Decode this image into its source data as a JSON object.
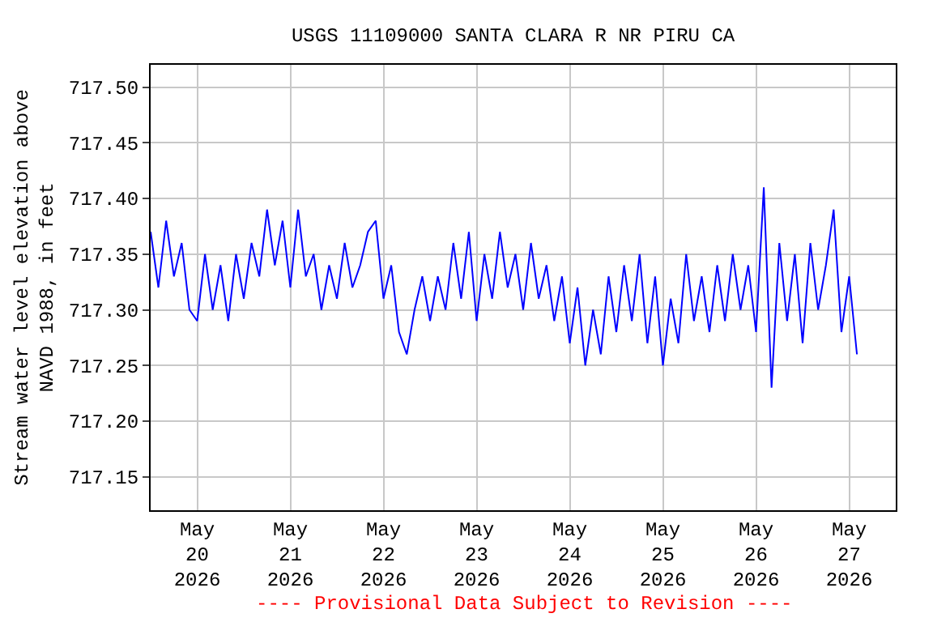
{
  "chart_data": {
    "type": "line",
    "title": "USGS 11109000 SANTA CLARA R NR PIRU CA",
    "ylabel": "Stream water level elevation above NAVD 1988, in feet",
    "annotations": [
      "---- Provisional Data Subject to Revision ----"
    ],
    "x": [
      "2026-05-19T12:00",
      "2026-05-19T14:00",
      "2026-05-19T16:00",
      "2026-05-19T18:00",
      "2026-05-19T20:00",
      "2026-05-19T22:00",
      "2026-05-20T00:00",
      "2026-05-20T02:00",
      "2026-05-20T04:00",
      "2026-05-20T06:00",
      "2026-05-20T08:00",
      "2026-05-20T10:00",
      "2026-05-20T12:00",
      "2026-05-20T14:00",
      "2026-05-20T16:00",
      "2026-05-20T18:00",
      "2026-05-20T20:00",
      "2026-05-20T22:00",
      "2026-05-21T00:00",
      "2026-05-21T02:00",
      "2026-05-21T04:00",
      "2026-05-21T06:00",
      "2026-05-21T08:00",
      "2026-05-21T10:00",
      "2026-05-21T12:00",
      "2026-05-21T14:00",
      "2026-05-21T16:00",
      "2026-05-21T18:00",
      "2026-05-21T20:00",
      "2026-05-21T22:00",
      "2026-05-22T00:00",
      "2026-05-22T02:00",
      "2026-05-22T04:00",
      "2026-05-22T06:00",
      "2026-05-22T08:00",
      "2026-05-22T10:00",
      "2026-05-22T12:00",
      "2026-05-22T14:00",
      "2026-05-22T16:00",
      "2026-05-22T18:00",
      "2026-05-22T20:00",
      "2026-05-22T22:00",
      "2026-05-23T00:00",
      "2026-05-23T02:00",
      "2026-05-23T04:00",
      "2026-05-23T06:00",
      "2026-05-23T08:00",
      "2026-05-23T10:00",
      "2026-05-23T12:00",
      "2026-05-23T14:00",
      "2026-05-23T16:00",
      "2026-05-23T18:00",
      "2026-05-23T20:00",
      "2026-05-23T22:00",
      "2026-05-24T00:00",
      "2026-05-24T02:00",
      "2026-05-24T04:00",
      "2026-05-24T06:00",
      "2026-05-24T08:00",
      "2026-05-24T10:00",
      "2026-05-24T12:00",
      "2026-05-24T14:00",
      "2026-05-24T16:00",
      "2026-05-24T18:00",
      "2026-05-24T20:00",
      "2026-05-24T22:00",
      "2026-05-25T00:00",
      "2026-05-25T02:00",
      "2026-05-25T04:00",
      "2026-05-25T06:00",
      "2026-05-25T08:00",
      "2026-05-25T10:00",
      "2026-05-25T12:00",
      "2026-05-25T14:00",
      "2026-05-25T16:00",
      "2026-05-25T18:00",
      "2026-05-25T20:00",
      "2026-05-25T22:00",
      "2026-05-26T00:00",
      "2026-05-26T02:00",
      "2026-05-26T04:00",
      "2026-05-26T06:00",
      "2026-05-26T08:00",
      "2026-05-26T10:00",
      "2026-05-26T12:00",
      "2026-05-26T14:00",
      "2026-05-26T16:00",
      "2026-05-26T18:00",
      "2026-05-26T20:00",
      "2026-05-26T22:00",
      "2026-05-27T00:00",
      "2026-05-27T02:00"
    ],
    "series": [
      {
        "color": "#0000ff",
        "values": [
          717.37,
          717.32,
          717.38,
          717.33,
          717.36,
          717.3,
          717.29,
          717.35,
          717.3,
          717.34,
          717.29,
          717.35,
          717.31,
          717.36,
          717.33,
          717.39,
          717.34,
          717.38,
          717.32,
          717.39,
          717.33,
          717.35,
          717.3,
          717.34,
          717.31,
          717.36,
          717.32,
          717.34,
          717.37,
          717.38,
          717.31,
          717.34,
          717.28,
          717.26,
          717.3,
          717.33,
          717.29,
          717.33,
          717.3,
          717.36,
          717.31,
          717.37,
          717.29,
          717.35,
          717.31,
          717.37,
          717.32,
          717.35,
          717.3,
          717.36,
          717.31,
          717.34,
          717.29,
          717.33,
          717.27,
          717.32,
          717.25,
          717.3,
          717.26,
          717.33,
          717.28,
          717.34,
          717.29,
          717.35,
          717.27,
          717.33,
          717.25,
          717.31,
          717.27,
          717.35,
          717.29,
          717.33,
          717.28,
          717.34,
          717.29,
          717.35,
          717.3,
          717.34,
          717.28,
          717.41,
          717.23,
          717.36,
          717.29,
          717.35,
          717.27,
          717.36,
          717.3,
          717.34,
          717.39,
          717.28,
          717.33,
          717.26
        ]
      }
    ],
    "xlim": [
      "2026-05-19T12:00",
      "2026-05-27T12:00"
    ],
    "xticks": [
      {
        "value": "2026-05-20",
        "label": "May\n20\n2026"
      },
      {
        "value": "2026-05-21",
        "label": "May\n21\n2026"
      },
      {
        "value": "2026-05-22",
        "label": "May\n22\n2026"
      },
      {
        "value": "2026-05-23",
        "label": "May\n23\n2026"
      },
      {
        "value": "2026-05-24",
        "label": "May\n24\n2026"
      },
      {
        "value": "2026-05-25",
        "label": "May\n25\n2026"
      },
      {
        "value": "2026-05-26",
        "label": "May\n26\n2026"
      },
      {
        "value": "2026-05-27",
        "label": "May\n27\n2026"
      }
    ],
    "ylim": [
      717.12,
      717.52
    ],
    "yticks": [
      {
        "value": 717.15,
        "label": "717.15"
      },
      {
        "value": 717.2,
        "label": "717.20"
      },
      {
        "value": 717.25,
        "label": "717.25"
      },
      {
        "value": 717.3,
        "label": "717.30"
      },
      {
        "value": 717.35,
        "label": "717.35"
      },
      {
        "value": 717.4,
        "label": "717.40"
      },
      {
        "value": 717.45,
        "label": "717.45"
      },
      {
        "value": 717.5,
        "label": "717.50"
      }
    ],
    "grid": true,
    "line_style": "solid"
  }
}
